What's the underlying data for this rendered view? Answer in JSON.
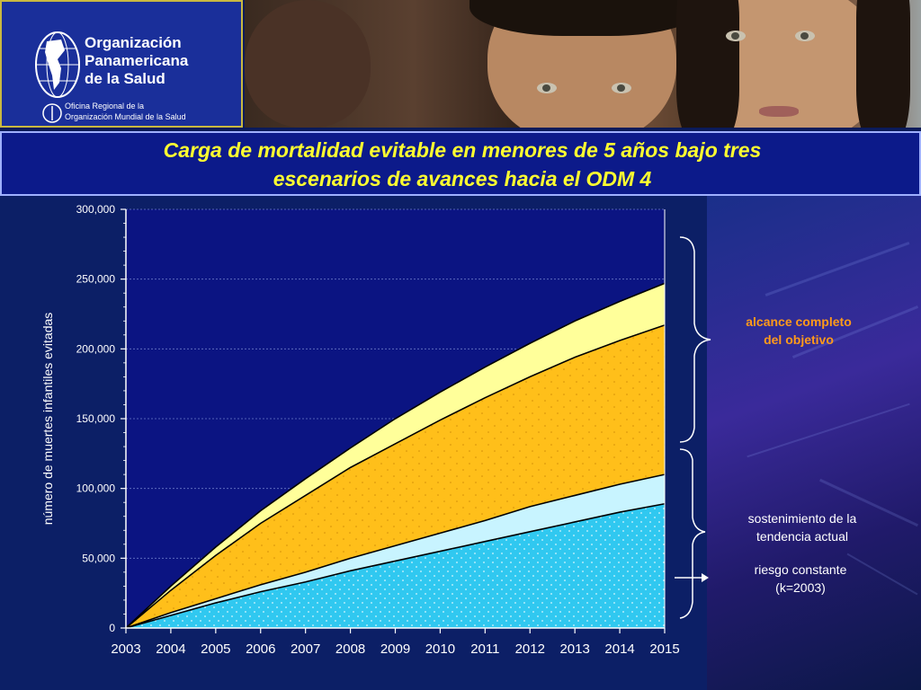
{
  "header": {
    "logo": {
      "line1": "Organización",
      "line2": "Panamericana",
      "line3": "de la Salud",
      "small1": "Oficina Regional de la",
      "small2": "Organización Mundial de la Salud"
    },
    "title_line1": "Carga de mortalidad evitable en menores de 5 años bajo tres",
    "title_line2": "escenarios de avances hacia el ODM 4"
  },
  "annotations": {
    "full_goal_line1": "alcance completo",
    "full_goal_line2": "del objetivo",
    "trend_line1": "sostenimiento de la",
    "trend_line2": "tendencia actual",
    "constant_line1": "riesgo constante",
    "constant_line2": "(k=2003)"
  },
  "colors": {
    "plot_bg": "#0b1482",
    "cyan": "#30c8f0",
    "light_cyan": "#c8f4ff",
    "orange": "#ffbf1a",
    "light_yellow": "#ffff9a",
    "title_yellow": "#ffff30",
    "annotation_orange": "#ff9a1a"
  },
  "chart_data": {
    "type": "area",
    "title": "",
    "xlabel": "",
    "ylabel": "número de muertes infantiles evitadas",
    "x": [
      2003,
      2004,
      2005,
      2006,
      2007,
      2008,
      2009,
      2010,
      2011,
      2012,
      2013,
      2014,
      2015
    ],
    "ylim": [
      0,
      300000
    ],
    "yticks": [
      0,
      50000,
      100000,
      150000,
      200000,
      250000,
      300000
    ],
    "ytick_labels": [
      "0",
      "50,000",
      "100,000",
      "150,000",
      "200,000",
      "250,000",
      "300,000"
    ],
    "stacked": true,
    "series": [
      {
        "values": [
          0,
          9000,
          18000,
          26000,
          33000,
          41000,
          48000,
          55000,
          62000,
          69000,
          76000,
          83000,
          89000
        ]
      },
      {
        "values": [
          0,
          11000,
          21000,
          31000,
          40000,
          50000,
          59000,
          68000,
          77000,
          87000,
          95000,
          103000,
          110000
        ]
      },
      {
        "values": [
          0,
          27000,
          52000,
          75000,
          95000,
          115000,
          132000,
          149000,
          165000,
          180000,
          194000,
          206000,
          217000
        ]
      },
      {
        "values": [
          0,
          30000,
          58000,
          84000,
          107000,
          129000,
          150000,
          169000,
          187000,
          204000,
          220000,
          234000,
          247000
        ]
      }
    ],
    "grid": true,
    "legend": "none"
  }
}
